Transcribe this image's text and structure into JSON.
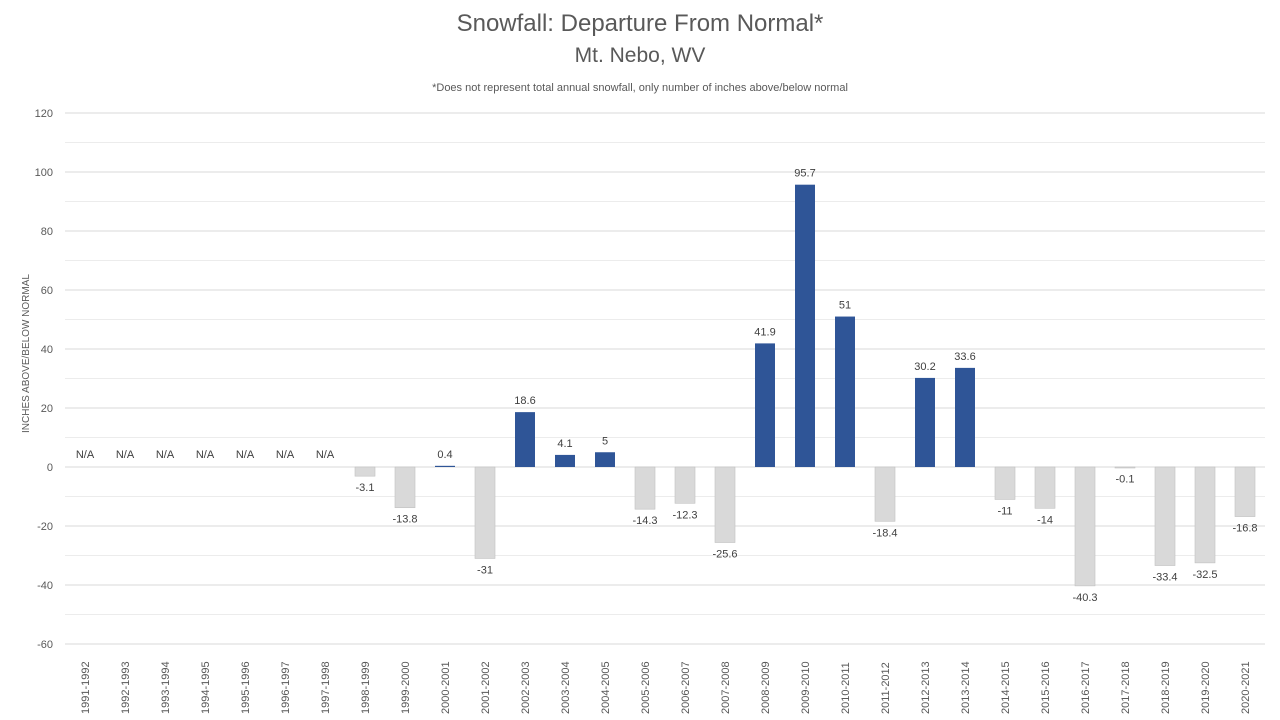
{
  "chart_data": {
    "type": "bar",
    "title": "Snowfall: Departure From Normal*",
    "subtitle": "Mt. Nebo, WV",
    "note": "*Does not represent  total annual snowfall, only number of inches above/below normal",
    "xlabel": "",
    "ylabel": "INCHES ABOVE/BELOW NORMAL",
    "ylim": [
      -60,
      120
    ],
    "yticks": [
      -60,
      -40,
      -20,
      0,
      20,
      40,
      60,
      80,
      100,
      120
    ],
    "grid": true,
    "legend": "none",
    "na_label": "N/A",
    "categories": [
      "1991-1992",
      "1992-1993",
      "1993-1994",
      "1994-1995",
      "1995-1996",
      "1996-1997",
      "1997-1998",
      "1998-1999",
      "1999-2000",
      "2000-2001",
      "2001-2002",
      "2002-2003",
      "2003-2004",
      "2004-2005",
      "2005-2006",
      "2006-2007",
      "2007-2008",
      "2008-2009",
      "2009-2010",
      "2010-2011",
      "2011-2012",
      "2012-2013",
      "2013-2014",
      "2014-2015",
      "2015-2016",
      "2016-2017",
      "2017-2018",
      "2018-2019",
      "2019-2020",
      "2020-2021"
    ],
    "values": [
      null,
      null,
      null,
      null,
      null,
      null,
      null,
      -3.1,
      -13.8,
      0.4,
      -31,
      18.6,
      4.1,
      5,
      -14.3,
      -12.3,
      -25.6,
      41.9,
      95.7,
      51,
      -18.4,
      30.2,
      33.6,
      -11,
      -14,
      -40.3,
      -0.1,
      -33.4,
      -32.5,
      -16.8
    ],
    "colors": {
      "positive": "#2f5597",
      "negative": "#d9d9d9",
      "negative_stroke": "#c0c0c0",
      "gridline": "#d9d9d9",
      "text": "#404040",
      "axis_text": "#595959"
    }
  }
}
